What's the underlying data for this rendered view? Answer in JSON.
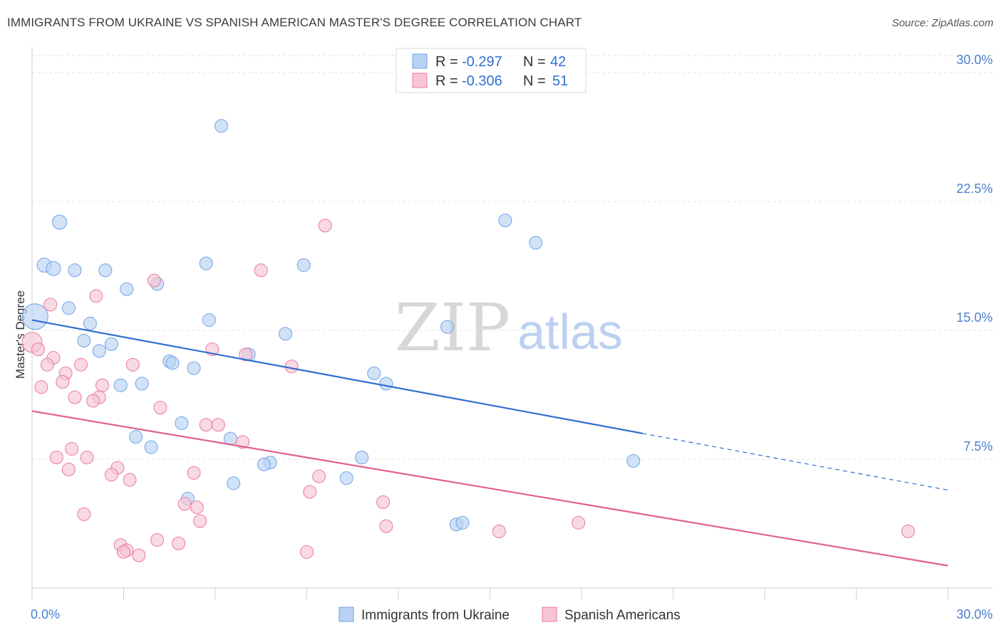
{
  "title": "IMMIGRANTS FROM UKRAINE VS SPANISH AMERICAN MASTER'S DEGREE CORRELATION CHART",
  "source": "Source: ZipAtlas.com",
  "watermark": {
    "zip": "ZIP",
    "atlas": "atlas"
  },
  "legend": {
    "r_label": "R =",
    "n_label": "N =",
    "rows": [
      {
        "r": "-0.297",
        "n": "42"
      },
      {
        "r": "-0.306",
        "n": "51"
      }
    ]
  },
  "chart_data": {
    "type": "scatter",
    "title": "IMMIGRANTS FROM UKRAINE VS SPANISH AMERICAN MASTER'S DEGREE CORRELATION CHART",
    "xlabel": "",
    "ylabel": "Master's Degree",
    "xlim": [
      0,
      30
    ],
    "ylim": [
      0,
      31
    ],
    "x_tick_labels": [
      "0.0%",
      "30.0%"
    ],
    "y_ticks": [
      7.5,
      15.0,
      22.5,
      30.0
    ],
    "y_tick_labels": [
      "7.5%",
      "15.0%",
      "22.5%",
      "30.0%"
    ],
    "series": [
      {
        "name": "Immigrants from Ukraine",
        "color": "#6fa3e6",
        "fill": "#b9d2f3",
        "trend": {
          "x0": 0,
          "y0": 15.6,
          "x1": 20,
          "y1": 9.0,
          "dash_to_x": 30,
          "dash_to_y": 5.7
        },
        "points": [
          [
            0.1,
            15.8,
            18
          ],
          [
            6.2,
            26.9,
            9
          ],
          [
            0.9,
            21.3,
            10
          ],
          [
            0.4,
            18.8,
            10
          ],
          [
            0.7,
            18.6,
            10
          ],
          [
            1.4,
            18.5,
            9
          ],
          [
            2.4,
            18.5,
            9
          ],
          [
            5.7,
            18.9,
            9
          ],
          [
            8.9,
            18.8,
            9
          ],
          [
            3.1,
            17.4,
            9
          ],
          [
            4.1,
            17.7,
            9
          ],
          [
            1.2,
            16.3,
            9
          ],
          [
            1.9,
            15.4,
            9
          ],
          [
            5.8,
            15.6,
            9
          ],
          [
            8.3,
            14.8,
            9
          ],
          [
            13.6,
            15.2,
            9
          ],
          [
            1.7,
            14.4,
            9
          ],
          [
            2.6,
            14.2,
            9
          ],
          [
            2.2,
            13.8,
            9
          ],
          [
            7.1,
            13.6,
            9
          ],
          [
            4.5,
            13.2,
            9
          ],
          [
            4.6,
            13.1,
            9
          ],
          [
            5.3,
            12.8,
            9
          ],
          [
            11.2,
            12.5,
            9
          ],
          [
            11.6,
            11.9,
            9
          ],
          [
            2.9,
            11.8,
            9
          ],
          [
            3.6,
            11.9,
            9
          ],
          [
            15.5,
            21.4,
            9
          ],
          [
            16.5,
            20.1,
            9
          ],
          [
            4.9,
            9.6,
            9
          ],
          [
            3.4,
            8.8,
            9
          ],
          [
            6.5,
            8.7,
            9
          ],
          [
            3.9,
            8.2,
            9
          ],
          [
            10.8,
            7.6,
            9
          ],
          [
            7.8,
            7.3,
            9
          ],
          [
            7.6,
            7.2,
            9
          ],
          [
            19.7,
            7.4,
            9
          ],
          [
            6.6,
            6.1,
            9
          ],
          [
            10.3,
            6.4,
            9
          ],
          [
            5.1,
            5.2,
            9
          ],
          [
            13.9,
            3.7,
            9
          ],
          [
            14.1,
            3.8,
            9
          ]
        ]
      },
      {
        "name": "Spanish Americans",
        "color": "#e87aa0",
        "fill": "#f6c4d4",
        "trend": {
          "x0": 0,
          "y0": 10.3,
          "x1": 30,
          "y1": 1.3
        },
        "points": [
          [
            0.0,
            14.3,
            14
          ],
          [
            0.2,
            13.9,
            9
          ],
          [
            0.6,
            16.5,
            9
          ],
          [
            0.7,
            13.4,
            9
          ],
          [
            0.5,
            13.0,
            9
          ],
          [
            1.1,
            12.5,
            9
          ],
          [
            1.0,
            12.0,
            9
          ],
          [
            0.3,
            11.7,
            9
          ],
          [
            1.6,
            13.0,
            9
          ],
          [
            2.1,
            17.0,
            9
          ],
          [
            2.3,
            11.8,
            9
          ],
          [
            1.4,
            11.1,
            9
          ],
          [
            2.2,
            11.1,
            9
          ],
          [
            2.0,
            10.9,
            9
          ],
          [
            4.0,
            17.9,
            9
          ],
          [
            3.3,
            13.0,
            9
          ],
          [
            4.2,
            10.5,
            9
          ],
          [
            5.9,
            13.9,
            9
          ],
          [
            7.0,
            13.6,
            9
          ],
          [
            7.5,
            18.5,
            9
          ],
          [
            9.6,
            21.1,
            9
          ],
          [
            8.5,
            12.9,
            9
          ],
          [
            1.3,
            8.1,
            9
          ],
          [
            0.8,
            7.6,
            9
          ],
          [
            1.8,
            7.6,
            9
          ],
          [
            5.7,
            9.5,
            9
          ],
          [
            6.1,
            9.5,
            9
          ],
          [
            6.9,
            8.5,
            9
          ],
          [
            1.2,
            6.9,
            9
          ],
          [
            2.8,
            7.0,
            9
          ],
          [
            2.6,
            6.6,
            9
          ],
          [
            3.2,
            6.3,
            9
          ],
          [
            5.3,
            6.7,
            9
          ],
          [
            9.4,
            6.5,
            9
          ],
          [
            9.1,
            5.6,
            9
          ],
          [
            11.5,
            5.0,
            9
          ],
          [
            5.0,
            4.9,
            9
          ],
          [
            5.4,
            4.7,
            9
          ],
          [
            1.7,
            4.3,
            9
          ],
          [
            5.5,
            3.9,
            9
          ],
          [
            11.6,
            3.6,
            9
          ],
          [
            17.9,
            3.8,
            9
          ],
          [
            15.3,
            3.3,
            9
          ],
          [
            28.7,
            3.3,
            9
          ],
          [
            4.1,
            2.8,
            9
          ],
          [
            4.8,
            2.6,
            9
          ],
          [
            2.9,
            2.5,
            9
          ],
          [
            3.1,
            2.2,
            9
          ],
          [
            3.0,
            2.1,
            9
          ],
          [
            3.5,
            1.9,
            9
          ],
          [
            9.0,
            2.1,
            9
          ]
        ]
      }
    ]
  }
}
